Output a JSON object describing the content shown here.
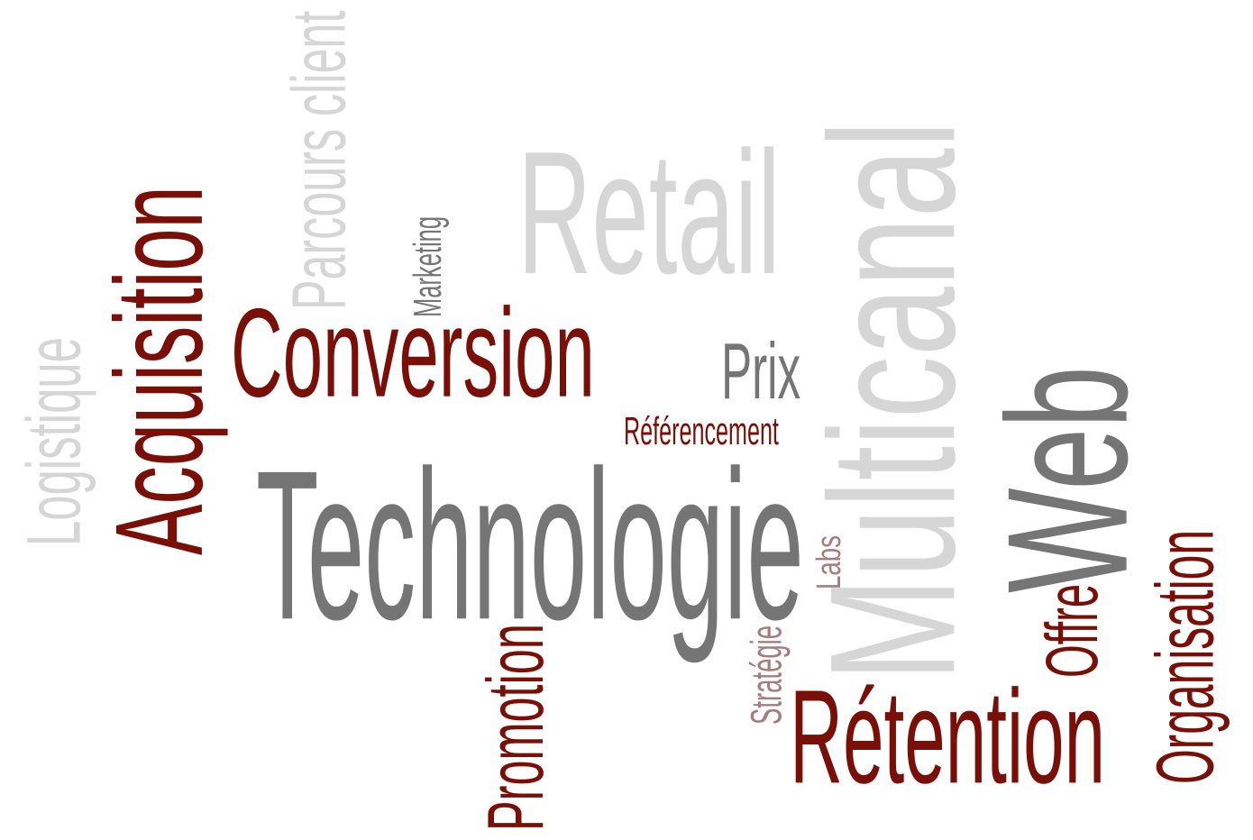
{
  "colors": {
    "dark_red": "#7a0f08",
    "gray_dark": "#757575",
    "gray_light": "#d6d6d6",
    "mauve": "#a87c7c"
  },
  "words": {
    "retail": "Retail",
    "parcours_client": "Parcours client",
    "marketing": "Marketing",
    "acquisition": "Acquisition",
    "logistique": "Logistique",
    "conversion": "Conversion",
    "prix": "Prix",
    "referencement": "Référencement",
    "multicanal": "Multicanal",
    "web": "Web",
    "technologie": "Technologie",
    "labs": "Labs",
    "promotion": "Promotion",
    "strategie": "Stratégie",
    "retention": "Rétention",
    "offre": "Offre",
    "organisation": "Organisation"
  }
}
